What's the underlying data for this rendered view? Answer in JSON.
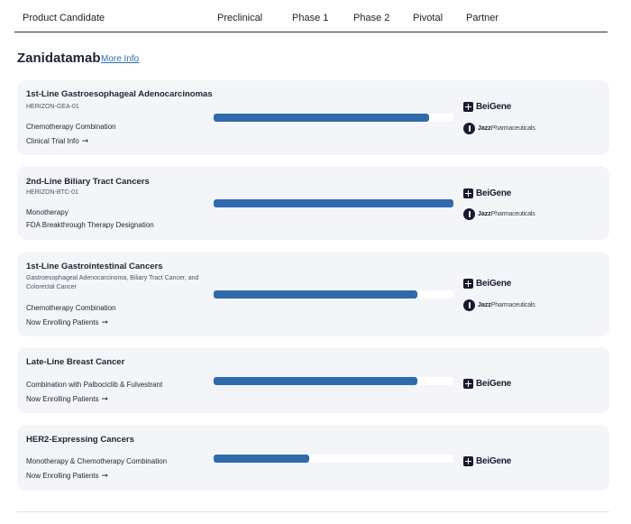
{
  "header": {
    "product_candidate": "Product Candidate",
    "preclinical": "Preclinical",
    "phase1": "Phase 1",
    "phase2": "Phase 2",
    "pivotal": "Pivotal",
    "partner": "Partner"
  },
  "product": {
    "name": "Zanidatamab",
    "more_info": "More Info"
  },
  "partners": {
    "beigene": "BeiGene",
    "jazz_bold": "Jazz",
    "jazz_rest": "Pharmaceuticals"
  },
  "programs": [
    {
      "indication": "1st-Line Gastroesophageal Adenocarcinomas",
      "trial": "HERIZON-GEA-01",
      "therapy": "Chemotherapy Combination",
      "link": "Clinical Trial Info",
      "progress_fraction": 0.9,
      "partners": [
        "BeiGene",
        "Jazz Pharmaceuticals"
      ]
    },
    {
      "indication": "2nd-Line Biliary Tract Cancers",
      "trial": "HERIZON-BTC-01",
      "therapy": "Monotherapy",
      "link": "FDA Breakthrough Therapy Designation",
      "progress_fraction": 1.0,
      "partners": [
        "BeiGene",
        "Jazz Pharmaceuticals"
      ]
    },
    {
      "indication": "1st-Line Gastrointestinal Cancers",
      "trial": "Gastroesophageal Adenocarcinoma, Biliary Tract Cancer, and Colorectal Cancer",
      "therapy": "Chemotherapy Combination",
      "link": "Now Enrolling Patients",
      "progress_fraction": 0.85,
      "partners": [
        "BeiGene",
        "Jazz Pharmaceuticals"
      ]
    },
    {
      "indication": "Late-Line Breast Cancer",
      "trial": "",
      "therapy": "Combination with Palbociclib & Fulvestrant",
      "link": "Now Enrolling Patients",
      "progress_fraction": 0.85,
      "partners": [
        "BeiGene"
      ]
    },
    {
      "indication": "HER2-Expressing Cancers",
      "trial": "",
      "therapy": "Monotherapy & Chemotherapy Combination",
      "link": "Now Enrolling Patients",
      "progress_fraction": 0.4,
      "partners": [
        "BeiGene"
      ]
    }
  ],
  "colors": {
    "bar": "#2f6aad",
    "card": "#f3f5f9",
    "link": "#2a6bb5"
  }
}
